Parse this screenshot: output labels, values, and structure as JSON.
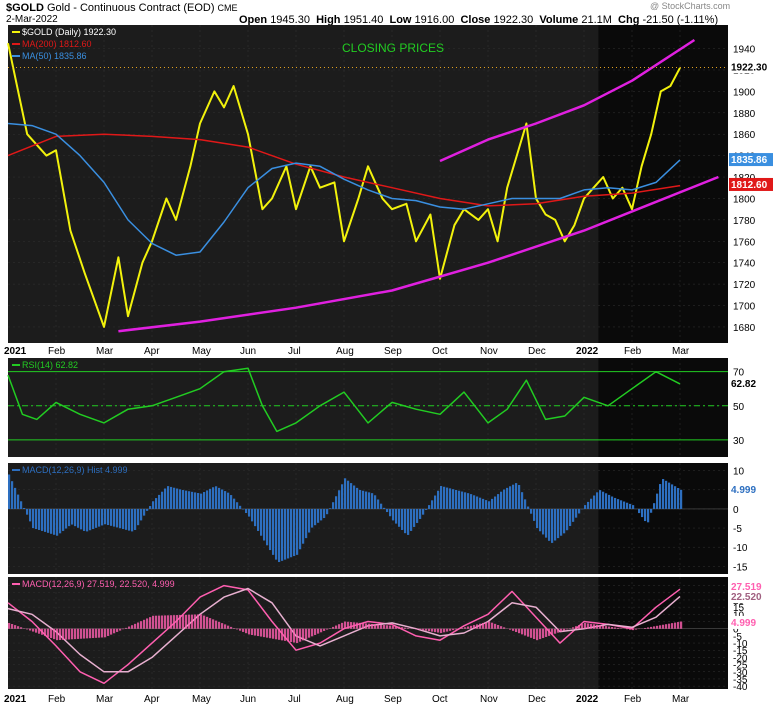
{
  "header": {
    "symbol": "$GOLD",
    "description": "Gold - Continuous Contract (EOD)",
    "exchange": "CME",
    "date": "2-Mar-2022",
    "watermark": "@ StockCharts.com",
    "open_label": "Open",
    "open": "1945.30",
    "high_label": "High",
    "high": "1951.40",
    "low_label": "Low",
    "low": "1916.00",
    "close_label": "Close",
    "close": "1922.30",
    "volume_label": "Volume",
    "volume": "21.1M",
    "chg_label": "Chg",
    "chg": "-21.50 (-1.11%)"
  },
  "colors": {
    "price": "#f2f20c",
    "ma200": "#e01818",
    "ma50": "#3a8fe0",
    "channel": "#e020e0",
    "rsi": "#22cc22",
    "hist": "#2d6fc0",
    "macd": "#ff5fb0",
    "signal": "#e8b0d0",
    "panel_bg": "#1c1c1c",
    "recent_bg": "#0a0a0a"
  },
  "x_axis": {
    "labels": [
      "2021",
      "Feb",
      "Mar",
      "Apr",
      "May",
      "Jun",
      "Jul",
      "Aug",
      "Sep",
      "Oct",
      "Nov",
      "Dec",
      "2022",
      "Feb",
      "Mar"
    ],
    "bold": [
      true,
      false,
      false,
      false,
      false,
      false,
      false,
      false,
      false,
      false,
      false,
      false,
      true,
      false,
      false
    ]
  },
  "chart_data": [
    {
      "type": "line",
      "title": "CLOSING PRICES",
      "legend": [
        {
          "label": "$GOLD (Daily) 1922.30",
          "color": "#f2f20c"
        },
        {
          "label": "MA(200) 1812.60",
          "color": "#e01818"
        },
        {
          "label": "MA(50) 1835.86",
          "color": "#3a8fe0"
        }
      ],
      "ylim": [
        1665,
        1962
      ],
      "y_ticks": [
        1680,
        1700,
        1720,
        1740,
        1760,
        1780,
        1800,
        1820,
        1840,
        1860,
        1880,
        1900,
        1920,
        1940
      ],
      "last_values": {
        "price": "1922.30",
        "ma200": "1812.60",
        "ma50": "1835.86"
      },
      "series": [
        {
          "name": "$GOLD",
          "key": "price",
          "x": [
            0,
            0.4,
            0.8,
            1,
            1.3,
            1.6,
            2,
            2.3,
            2.5,
            2.8,
            3,
            3.3,
            3.5,
            3.8,
            4,
            4.3,
            4.5,
            4.7,
            5,
            5.3,
            5.5,
            5.8,
            6,
            6.3,
            6.5,
            6.8,
            7,
            7.3,
            7.5,
            7.8,
            8,
            8.3,
            8.5,
            8.8,
            9,
            9.3,
            9.5,
            9.8,
            10,
            10.2,
            10.4,
            10.6,
            10.8,
            11,
            11.2,
            11.4,
            11.6,
            11.8,
            12,
            12.2,
            12.4,
            12.6,
            12.8,
            13,
            13.2,
            13.4,
            13.6,
            13.8,
            14
          ],
          "values": [
            1945,
            1860,
            1840,
            1845,
            1770,
            1730,
            1680,
            1745,
            1690,
            1740,
            1760,
            1800,
            1780,
            1830,
            1870,
            1900,
            1885,
            1905,
            1860,
            1790,
            1800,
            1830,
            1790,
            1830,
            1810,
            1815,
            1760,
            1800,
            1830,
            1800,
            1790,
            1795,
            1760,
            1785,
            1725,
            1775,
            1790,
            1780,
            1790,
            1760,
            1810,
            1840,
            1870,
            1800,
            1785,
            1780,
            1760,
            1775,
            1800,
            1810,
            1820,
            1800,
            1810,
            1790,
            1830,
            1860,
            1900,
            1905,
            1922
          ]
        },
        {
          "name": "MA(200)",
          "key": "ma200",
          "x": [
            0,
            1,
            2,
            3,
            4,
            5,
            6,
            7,
            8,
            9,
            10,
            11,
            12,
            13,
            14
          ],
          "values": [
            1840,
            1858,
            1860,
            1858,
            1855,
            1848,
            1832,
            1820,
            1810,
            1800,
            1793,
            1795,
            1802,
            1805,
            1812
          ]
        },
        {
          "name": "MA(50)",
          "key": "ma50",
          "x": [
            0,
            0.5,
            1,
            1.5,
            2,
            2.5,
            3,
            3.5,
            4,
            4.5,
            5,
            5.5,
            6,
            6.5,
            7,
            7.5,
            8,
            8.5,
            9,
            9.5,
            10,
            10.5,
            11,
            11.5,
            12,
            12.5,
            13,
            13.5,
            14
          ],
          "values": [
            1870,
            1868,
            1860,
            1840,
            1815,
            1780,
            1758,
            1747,
            1750,
            1778,
            1810,
            1828,
            1833,
            1830,
            1818,
            1808,
            1800,
            1798,
            1792,
            1790,
            1795,
            1800,
            1800,
            1800,
            1808,
            1810,
            1808,
            1815,
            1836
          ]
        },
        {
          "name": "Upper channel",
          "key": "upper",
          "x": [
            9,
            10,
            11,
            12,
            13,
            14.3
          ],
          "values": [
            1835,
            1855,
            1870,
            1887,
            1910,
            1948
          ]
        },
        {
          "name": "Lower channel",
          "key": "lower",
          "x": [
            2.3,
            4,
            6,
            8,
            10,
            12,
            14.8
          ],
          "values": [
            1676,
            1685,
            1698,
            1714,
            1740,
            1770,
            1820
          ]
        }
      ]
    },
    {
      "type": "line",
      "legend": [
        {
          "label": "RSI(14) 62.82",
          "color": "#22cc22"
        }
      ],
      "ylim": [
        20,
        78
      ],
      "y_ticks": [
        30,
        50,
        70
      ],
      "guide_lines": [
        30,
        50,
        70
      ],
      "last_value": "62.82",
      "series": [
        {
          "name": "RSI(14)",
          "key": "rsi",
          "x": [
            0,
            0.3,
            0.6,
            1,
            1.5,
            2,
            2.5,
            3,
            3.5,
            4,
            4.5,
            5,
            5.3,
            5.6,
            6,
            6.5,
            7,
            7.5,
            8,
            8.5,
            9,
            9.5,
            10,
            10.4,
            10.8,
            11.2,
            11.6,
            12,
            12.5,
            13,
            13.5,
            14
          ],
          "values": [
            68,
            45,
            42,
            52,
            45,
            40,
            48,
            50,
            55,
            60,
            70,
            72,
            50,
            35,
            40,
            50,
            58,
            40,
            52,
            48,
            45,
            58,
            40,
            48,
            65,
            42,
            44,
            55,
            50,
            60,
            70,
            62.82
          ]
        }
      ]
    },
    {
      "type": "bar",
      "legend": [
        {
          "label": "MACD(12,26,9) Hist 4.999",
          "color": "#2d6fc0"
        }
      ],
      "ylim": [
        -17,
        12
      ],
      "y_ticks": [
        -15,
        -10,
        -5,
        0,
        5,
        10
      ],
      "last_value": "4.999",
      "series": [
        {
          "name": "MACD(12,26,9) Hist",
          "key": "hist",
          "x": [
            0,
            0.5,
            1,
            1.3,
            1.6,
            2,
            2.3,
            2.6,
            3,
            3.3,
            3.6,
            4,
            4.3,
            4.6,
            5,
            5.3,
            5.6,
            6,
            6.3,
            6.6,
            7,
            7.3,
            7.6,
            8,
            8.3,
            8.6,
            9,
            9.3,
            9.6,
            10,
            10.3,
            10.6,
            11,
            11.3,
            11.6,
            12,
            12.3,
            12.6,
            13,
            13.3,
            13.6,
            14
          ],
          "values": [
            9,
            -5,
            -7,
            -4,
            -6,
            -4,
            -5,
            -6,
            2,
            6,
            5,
            4,
            6,
            4,
            -2,
            -8,
            -14,
            -12,
            -5,
            -2,
            8,
            5,
            4,
            -3,
            -7,
            -2,
            6,
            5,
            4,
            2,
            5,
            7,
            -5,
            -9,
            -6,
            1,
            5,
            3,
            1,
            -4,
            8,
            5
          ]
        }
      ]
    },
    {
      "type": "line",
      "legend": [
        {
          "label": "MACD(12,26,9) 27.519, 22.520, 4.999",
          "color": "#ff5fb0"
        }
      ],
      "ylim": [
        -42,
        36
      ],
      "y_ticks": [
        -40,
        -35,
        -30,
        -25,
        -20,
        -15,
        -10,
        -5,
        0,
        5,
        10,
        15,
        20,
        25,
        30
      ],
      "last_values": {
        "macd": "27.519",
        "signal": "22.520",
        "hist": "4.999"
      },
      "series": [
        {
          "name": "MACD",
          "key": "macd",
          "x": [
            0,
            0.5,
            1,
            1.5,
            2,
            2.5,
            3,
            3.5,
            4,
            4.5,
            5,
            5.5,
            6,
            6.5,
            7,
            7.5,
            8,
            8.5,
            9,
            9.5,
            10,
            10.5,
            11,
            11.5,
            12,
            12.5,
            13,
            13.5,
            14
          ],
          "values": [
            18,
            5,
            -12,
            -30,
            -38,
            -25,
            -10,
            5,
            22,
            30,
            27,
            5,
            -15,
            -10,
            0,
            5,
            3,
            -5,
            -8,
            2,
            10,
            26,
            8,
            -10,
            5,
            3,
            0,
            15,
            27.5
          ]
        },
        {
          "name": "Signal",
          "key": "signal",
          "x": [
            0,
            0.5,
            1,
            1.5,
            2,
            2.5,
            3,
            3.5,
            4,
            4.5,
            5,
            5.5,
            6,
            6.5,
            7,
            7.5,
            8,
            8.5,
            9,
            9.5,
            10,
            10.5,
            11,
            11.5,
            12,
            12.5,
            13,
            13.5,
            14
          ],
          "values": [
            14,
            10,
            -2,
            -18,
            -30,
            -30,
            -20,
            -5,
            10,
            22,
            28,
            18,
            -5,
            -12,
            -5,
            2,
            4,
            0,
            -5,
            -3,
            5,
            18,
            15,
            -2,
            0,
            3,
            1,
            8,
            22.5
          ]
        },
        {
          "name": "Hist",
          "key": "hist2",
          "x": [
            0,
            1,
            2,
            3,
            4,
            5,
            6,
            7,
            8,
            9,
            10,
            11,
            12,
            13,
            14
          ],
          "values": [
            4,
            -8,
            -6,
            9,
            10,
            -4,
            -10,
            5,
            2,
            -3,
            5,
            -8,
            4,
            -1,
            5
          ]
        }
      ]
    }
  ]
}
